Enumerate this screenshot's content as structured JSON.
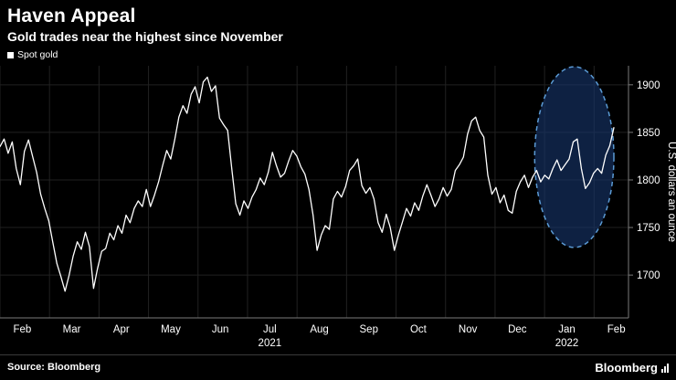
{
  "header": {
    "title": "Haven Appeal",
    "subtitle": "Gold trades near the highest since November"
  },
  "legend": {
    "label": "Spot gold",
    "swatch_color": "#ffffff"
  },
  "chart_data": {
    "type": "line",
    "title": "Haven Appeal",
    "subtitle": "Gold trades near the highest since November",
    "ylabel": "U.S. dollars an ounce",
    "yticks": [
      1700,
      1750,
      1800,
      1850,
      1900
    ],
    "ylim": [
      1655,
      1920
    ],
    "x_month_labels": [
      "Feb",
      "Mar",
      "Apr",
      "May",
      "Jun",
      "Jul",
      "Aug",
      "Sep",
      "Oct",
      "Nov",
      "Dec",
      "Jan",
      "Feb"
    ],
    "year_labels": [
      {
        "text": "2021",
        "month_index": 5
      },
      {
        "text": "2022",
        "month_index": 11
      }
    ],
    "months_span": 12.4,
    "grid": true,
    "legend_position": "top-left",
    "line_color": "#ffffff",
    "series": [
      {
        "name": "Spot gold",
        "color": "#ffffff",
        "values": [
          1835,
          1843,
          1828,
          1840,
          1812,
          1795,
          1830,
          1842,
          1825,
          1808,
          1785,
          1770,
          1757,
          1734,
          1712,
          1698,
          1683,
          1700,
          1720,
          1735,
          1727,
          1745,
          1730,
          1686,
          1707,
          1725,
          1728,
          1744,
          1737,
          1752,
          1744,
          1763,
          1755,
          1770,
          1778,
          1772,
          1790,
          1772,
          1784,
          1798,
          1815,
          1831,
          1822,
          1843,
          1866,
          1878,
          1870,
          1890,
          1898,
          1881,
          1903,
          1908,
          1893,
          1899,
          1865,
          1858,
          1852,
          1812,
          1775,
          1763,
          1778,
          1770,
          1782,
          1790,
          1802,
          1795,
          1808,
          1829,
          1815,
          1803,
          1807,
          1820,
          1831,
          1825,
          1814,
          1806,
          1790,
          1763,
          1726,
          1742,
          1752,
          1748,
          1780,
          1788,
          1782,
          1793,
          1810,
          1815,
          1822,
          1794,
          1786,
          1792,
          1780,
          1755,
          1745,
          1764,
          1750,
          1726,
          1742,
          1756,
          1770,
          1762,
          1776,
          1768,
          1783,
          1795,
          1784,
          1772,
          1780,
          1792,
          1783,
          1790,
          1810,
          1816,
          1824,
          1848,
          1862,
          1866,
          1852,
          1845,
          1805,
          1785,
          1792,
          1776,
          1784,
          1768,
          1765,
          1788,
          1798,
          1805,
          1792,
          1803,
          1810,
          1798,
          1805,
          1801,
          1812,
          1821,
          1810,
          1816,
          1822,
          1840,
          1843,
          1812,
          1791,
          1797,
          1807,
          1812,
          1807,
          1826,
          1836,
          1855
        ]
      }
    ],
    "annotation": {
      "shape": "dashed-ellipse",
      "center_month": 11.6,
      "center_value": 1824,
      "rx_months": 0.8,
      "ry_value": 95,
      "fill": "#16356b",
      "fill_opacity": 0.62,
      "stroke": "#5b9bd5"
    }
  },
  "footer": {
    "source": "Source: Bloomberg",
    "brand": "Bloomberg"
  },
  "colors": {
    "background": "#000000",
    "text": "#ffffff",
    "grid": "#212121",
    "axis": "#7a7a7a"
  }
}
